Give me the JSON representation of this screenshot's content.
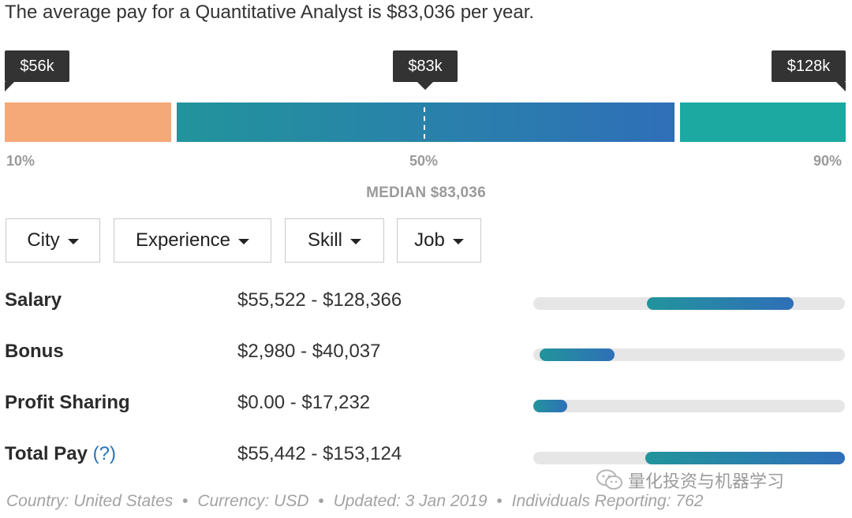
{
  "headline": "The average pay for a Quantitative Analyst is $83,036 per year.",
  "range": {
    "low_tip": "$56k",
    "median_tip": "$83k",
    "high_tip": "$128k",
    "p10_label": "10%",
    "p50_label": "50%",
    "p90_label": "90%",
    "median_label": "MEDIAN $83,036",
    "colors": {
      "low": "#f5a878",
      "mid_start": "#22949c",
      "mid_end": "#2f6fb8",
      "high": "#1ba9a2"
    }
  },
  "filters": [
    {
      "label": "City"
    },
    {
      "label": "Experience"
    },
    {
      "label": "Skill"
    },
    {
      "label": "Job"
    }
  ],
  "rows": [
    {
      "label": "Salary",
      "range": "$55,522 - $128,366",
      "bar_start": 0.365,
      "bar_end": 0.835
    },
    {
      "label": "Bonus",
      "range": "$2,980 - $40,037",
      "bar_start": 0.02,
      "bar_end": 0.26
    },
    {
      "label": "Profit Sharing",
      "range": "$0.00 - $17,232",
      "bar_start": 0.0,
      "bar_end": 0.11
    },
    {
      "label": "Total Pay",
      "help": "?",
      "range": "$55,442 - $153,124",
      "bar_start": 0.36,
      "bar_end": 1.0
    }
  ],
  "footer": {
    "country": "Country: United States",
    "currency": "Currency: USD",
    "updated": "Updated: 3 Jan 2019",
    "reporting": "Individuals Reporting: 762",
    "separator": "•"
  },
  "watermark": {
    "text": "量化投资与机器学习",
    "icon": "wechat-icon"
  }
}
